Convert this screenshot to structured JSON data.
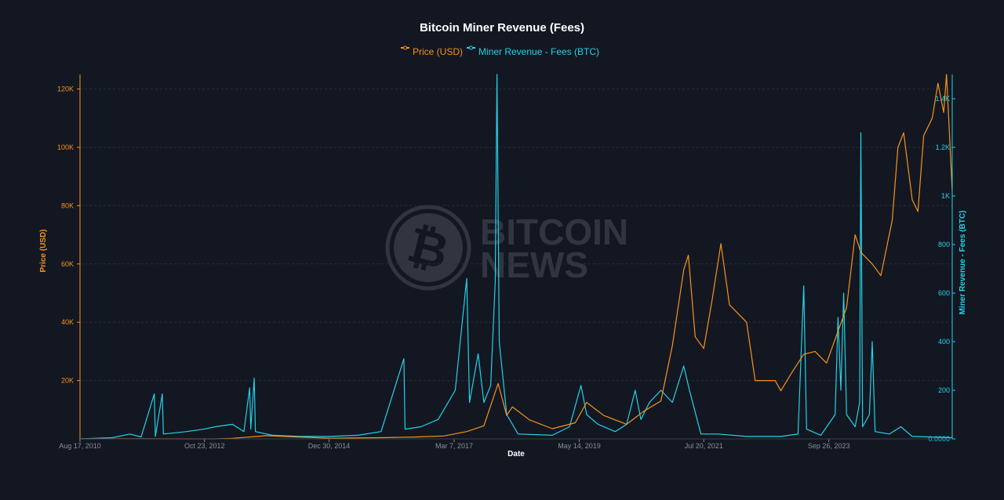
{
  "chart_data": {
    "type": "line",
    "title": "Bitcoin Miner Revenue (Fees)",
    "xlabel": "Date",
    "ylabel_left": "Price (USD)",
    "ylabel_right": "Miner Revenue - Fees (BTC)",
    "legend_placement": "top-center",
    "grid": true,
    "colors": {
      "background": "#131722",
      "price": "#f7931a",
      "fees": "#22d3e6",
      "grid": "#2a2e39",
      "title": "#ffffff",
      "tick": "#8a8f9c"
    },
    "watermark": {
      "line1": "BITCOIN",
      "line2": "NEWS"
    },
    "xlim": [
      2010.63,
      2025.9
    ],
    "ylim_left": [
      0,
      125000
    ],
    "ylim_right": [
      0,
      1500
    ],
    "x_ticks": [
      {
        "label": "Aug 17, 2010",
        "value": 2010.63
      },
      {
        "label": "Oct 23, 2012",
        "value": 2012.81
      },
      {
        "label": "Dec 30, 2014",
        "value": 2014.99
      },
      {
        "label": "Mar 7, 2017",
        "value": 2017.18
      },
      {
        "label": "May 14, 2019",
        "value": 2019.37
      },
      {
        "label": "Jul 20, 2021",
        "value": 2021.55
      },
      {
        "label": "Sep 26, 2023",
        "value": 2023.74
      }
    ],
    "y_ticks_left": [
      {
        "label": "20K",
        "value": 20000
      },
      {
        "label": "40K",
        "value": 40000
      },
      {
        "label": "60K",
        "value": 60000
      },
      {
        "label": "80K",
        "value": 80000
      },
      {
        "label": "100K",
        "value": 100000
      },
      {
        "label": "120K",
        "value": 120000
      }
    ],
    "y_ticks_right": [
      {
        "label": "0.0000",
        "value": 0
      },
      {
        "label": "200",
        "value": 200
      },
      {
        "label": "400",
        "value": 400
      },
      {
        "label": "600",
        "value": 600
      },
      {
        "label": "800",
        "value": 800
      },
      {
        "label": "1K",
        "value": 1000
      },
      {
        "label": "1.2K",
        "value": 1200
      },
      {
        "label": "1.4K",
        "value": 1400
      }
    ],
    "series": [
      {
        "name": "Price (USD)",
        "axis": "left",
        "points": [
          [
            2010.63,
            0
          ],
          [
            2011.45,
            20
          ],
          [
            2012.5,
            7
          ],
          [
            2013.0,
            13
          ],
          [
            2013.3,
            200
          ],
          [
            2013.9,
            1100
          ],
          [
            2014.5,
            600
          ],
          [
            2015.0,
            250
          ],
          [
            2015.9,
            400
          ],
          [
            2016.5,
            650
          ],
          [
            2017.0,
            1000
          ],
          [
            2017.4,
            2500
          ],
          [
            2017.7,
            4500
          ],
          [
            2017.95,
            19000
          ],
          [
            2018.1,
            8000
          ],
          [
            2018.2,
            11000
          ],
          [
            2018.5,
            6500
          ],
          [
            2018.9,
            3500
          ],
          [
            2019.3,
            5500
          ],
          [
            2019.5,
            12500
          ],
          [
            2019.8,
            8000
          ],
          [
            2020.2,
            5000
          ],
          [
            2020.5,
            9500
          ],
          [
            2020.8,
            13000
          ],
          [
            2021.0,
            32000
          ],
          [
            2021.2,
            58000
          ],
          [
            2021.28,
            63000
          ],
          [
            2021.4,
            35000
          ],
          [
            2021.55,
            31000
          ],
          [
            2021.7,
            48000
          ],
          [
            2021.85,
            67000
          ],
          [
            2022.0,
            46000
          ],
          [
            2022.3,
            40000
          ],
          [
            2022.45,
            20000
          ],
          [
            2022.8,
            20000
          ],
          [
            2022.9,
            16500
          ],
          [
            2023.1,
            23000
          ],
          [
            2023.3,
            29000
          ],
          [
            2023.5,
            30000
          ],
          [
            2023.7,
            26000
          ],
          [
            2023.9,
            37000
          ],
          [
            2024.05,
            45000
          ],
          [
            2024.2,
            70000
          ],
          [
            2024.3,
            64000
          ],
          [
            2024.5,
            60000
          ],
          [
            2024.65,
            56000
          ],
          [
            2024.85,
            75000
          ],
          [
            2024.95,
            100000
          ],
          [
            2025.05,
            105000
          ],
          [
            2025.2,
            82000
          ],
          [
            2025.3,
            78000
          ],
          [
            2025.4,
            104000
          ],
          [
            2025.55,
            110000
          ],
          [
            2025.65,
            122000
          ],
          [
            2025.75,
            112000
          ],
          [
            2025.8,
            125000
          ],
          [
            2025.85,
            105000
          ],
          [
            2025.9,
            85000
          ]
        ]
      },
      {
        "name": "Miner Revenue - Fees (BTC)",
        "axis": "right",
        "points": [
          [
            2010.63,
            0
          ],
          [
            2011.2,
            5
          ],
          [
            2011.5,
            20
          ],
          [
            2011.7,
            8
          ],
          [
            2011.93,
            185
          ],
          [
            2011.95,
            10
          ],
          [
            2012.07,
            185
          ],
          [
            2012.09,
            20
          ],
          [
            2012.5,
            30
          ],
          [
            2012.8,
            40
          ],
          [
            2013.0,
            50
          ],
          [
            2013.3,
            60
          ],
          [
            2013.5,
            30
          ],
          [
            2013.6,
            210
          ],
          [
            2013.62,
            40
          ],
          [
            2013.68,
            250
          ],
          [
            2013.7,
            30
          ],
          [
            2014.0,
            15
          ],
          [
            2014.5,
            10
          ],
          [
            2015.0,
            10
          ],
          [
            2015.5,
            15
          ],
          [
            2015.9,
            30
          ],
          [
            2016.3,
            330
          ],
          [
            2016.32,
            40
          ],
          [
            2016.6,
            50
          ],
          [
            2016.9,
            80
          ],
          [
            2017.2,
            200
          ],
          [
            2017.4,
            660
          ],
          [
            2017.45,
            150
          ],
          [
            2017.6,
            350
          ],
          [
            2017.7,
            150
          ],
          [
            2017.82,
            220
          ],
          [
            2017.9,
            650
          ],
          [
            2017.93,
            1500
          ],
          [
            2017.97,
            400
          ],
          [
            2018.1,
            100
          ],
          [
            2018.3,
            20
          ],
          [
            2018.9,
            15
          ],
          [
            2019.2,
            50
          ],
          [
            2019.4,
            220
          ],
          [
            2019.5,
            100
          ],
          [
            2019.7,
            60
          ],
          [
            2020.0,
            30
          ],
          [
            2020.2,
            60
          ],
          [
            2020.35,
            200
          ],
          [
            2020.45,
            80
          ],
          [
            2020.6,
            150
          ],
          [
            2020.8,
            200
          ],
          [
            2021.0,
            150
          ],
          [
            2021.2,
            300
          ],
          [
            2021.3,
            200
          ],
          [
            2021.5,
            20
          ],
          [
            2021.8,
            20
          ],
          [
            2022.3,
            10
          ],
          [
            2022.9,
            10
          ],
          [
            2023.2,
            20
          ],
          [
            2023.3,
            630
          ],
          [
            2023.35,
            40
          ],
          [
            2023.6,
            15
          ],
          [
            2023.85,
            100
          ],
          [
            2023.9,
            500
          ],
          [
            2023.95,
            200
          ],
          [
            2024.0,
            600
          ],
          [
            2024.05,
            100
          ],
          [
            2024.2,
            50
          ],
          [
            2024.28,
            150
          ],
          [
            2024.3,
            1260
          ],
          [
            2024.33,
            50
          ],
          [
            2024.45,
            100
          ],
          [
            2024.5,
            400
          ],
          [
            2024.55,
            30
          ],
          [
            2024.8,
            20
          ],
          [
            2025.0,
            50
          ],
          [
            2025.2,
            10
          ],
          [
            2025.9,
            5
          ]
        ]
      }
    ]
  }
}
